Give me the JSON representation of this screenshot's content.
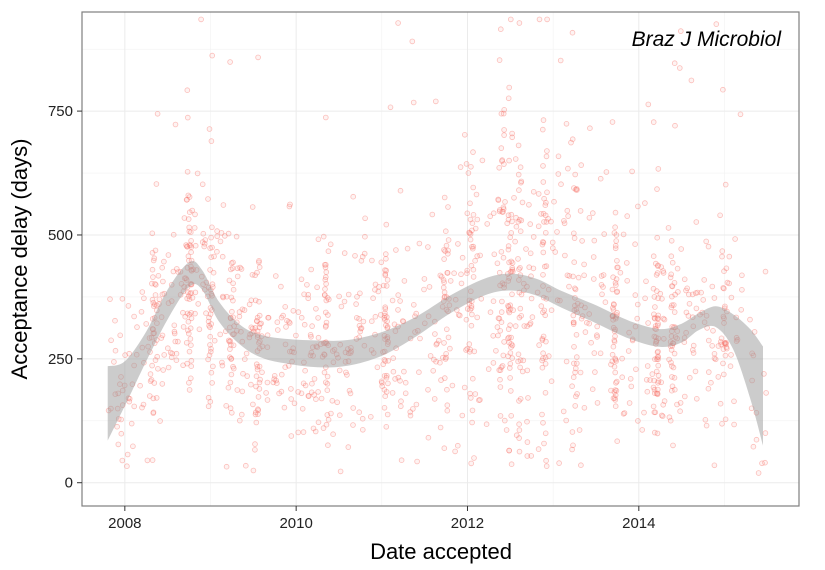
{
  "chart_data": {
    "type": "scatter",
    "title": "",
    "xlabel": "Date accepted",
    "ylabel": "Acceptance delay (days)",
    "annotation": "Braz J Microbiol",
    "xlim": [
      2007.5,
      2015.87
    ],
    "ylim": [
      -47,
      950
    ],
    "x_ticks": [
      2008,
      2010,
      2012,
      2014
    ],
    "x_tick_labels": [
      "2008",
      "2010",
      "2012",
      "2014"
    ],
    "y_ticks": [
      0,
      250,
      500,
      750
    ],
    "y_tick_labels": [
      "0",
      "250",
      "500",
      "750"
    ],
    "grid": true,
    "point_color": "#f8766d",
    "point_opacity": 0.2,
    "band_color": "#999999",
    "smooth": {
      "x": [
        2007.8,
        2008.0,
        2008.25,
        2008.5,
        2008.75,
        2008.9,
        2009.1,
        2009.35,
        2009.6,
        2009.9,
        2010.25,
        2010.6,
        2011.0,
        2011.4,
        2011.8,
        2012.2,
        2012.5,
        2012.8,
        2013.1,
        2013.5,
        2013.9,
        2014.25,
        2014.5,
        2014.7,
        2014.9,
        2015.1,
        2015.3,
        2015.45
      ],
      "fit": [
        160,
        200,
        275,
        360,
        420,
        410,
        345,
        298,
        275,
        265,
        260,
        262,
        280,
        315,
        360,
        395,
        405,
        395,
        370,
        340,
        308,
        292,
        302,
        325,
        335,
        305,
        240,
        175
      ],
      "lower": [
        85,
        155,
        245,
        330,
        395,
        390,
        325,
        278,
        252,
        240,
        233,
        236,
        256,
        295,
        342,
        378,
        388,
        378,
        353,
        322,
        290,
        274,
        283,
        308,
        314,
        270,
        170,
        75
      ],
      "upper": [
        235,
        245,
        305,
        390,
        445,
        430,
        365,
        318,
        298,
        290,
        287,
        288,
        304,
        335,
        378,
        412,
        422,
        412,
        387,
        358,
        326,
        310,
        321,
        342,
        356,
        340,
        310,
        275
      ]
    }
  }
}
